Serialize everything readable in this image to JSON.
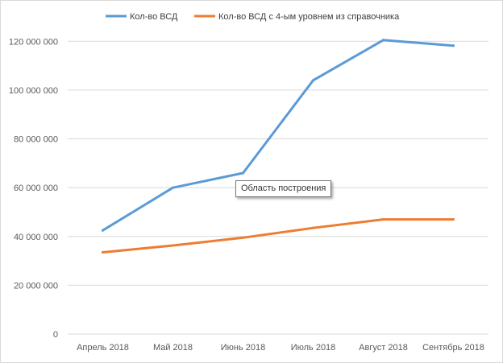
{
  "chart_data": {
    "type": "line",
    "categories": [
      "Апрель 2018",
      "Май 2018",
      "Июнь 2018",
      "Июль 2018",
      "Август 2018",
      "Сентябрь 2018"
    ],
    "series": [
      {
        "name": "Кол-во ВСД",
        "color": "#5b9bd5",
        "values": [
          42500000,
          60000000,
          66000000,
          104000000,
          120500000,
          118200000
        ]
      },
      {
        "name": "Кол-во ВСД с 4-ым уровнем из справочника",
        "color": "#ed7d31",
        "values": [
          33500000,
          36300000,
          39500000,
          43500000,
          47000000,
          47000000
        ]
      }
    ],
    "ylim": [
      0,
      130000000
    ],
    "yticks": [
      0,
      20000000,
      40000000,
      60000000,
      80000000,
      100000000,
      120000000
    ],
    "ytick_labels": [
      "0",
      "20 000 000",
      "40 000 000",
      "60 000 000",
      "80 000 000",
      "100 000 000",
      "120 000 000"
    ],
    "grid": true,
    "legend_position": "top",
    "gridline_color": "#d9d9d9"
  },
  "tooltip": {
    "text": "Область построения"
  }
}
